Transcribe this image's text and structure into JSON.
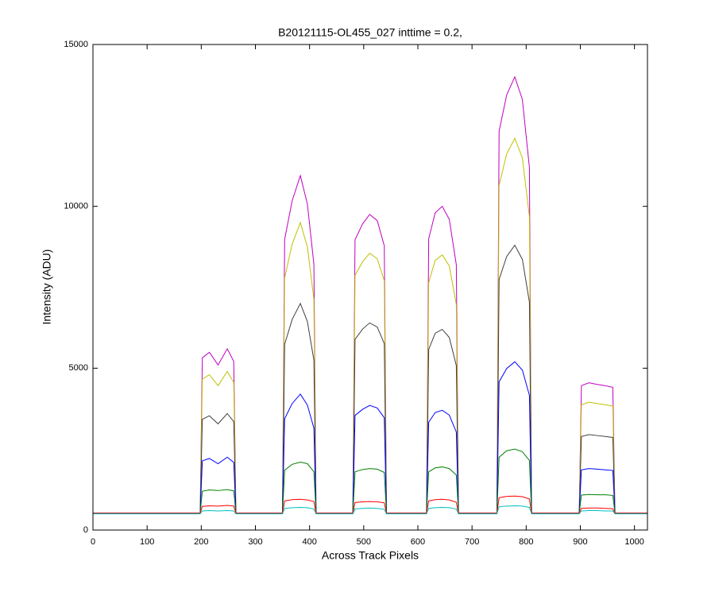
{
  "chart_data": {
    "type": "line",
    "title": "B20121115-OL455_027 inttime = 0.2,",
    "xlabel": "Across Track Pixels",
    "ylabel": "Intensity (ADU)",
    "xlim": [
      0,
      1024
    ],
    "ylim": [
      0,
      15000
    ],
    "xticks": [
      0,
      100,
      200,
      300,
      400,
      500,
      600,
      700,
      800,
      900,
      1000
    ],
    "yticks": [
      0,
      5000,
      10000,
      15000
    ],
    "grid": false,
    "x": [
      0,
      198,
      202,
      215,
      231,
      248,
      260,
      264,
      350,
      354,
      368,
      383,
      396,
      408,
      412,
      480,
      484,
      498,
      511,
      525,
      538,
      542,
      616,
      620,
      632,
      645,
      658,
      671,
      675,
      746,
      750,
      764,
      779,
      793,
      806,
      810,
      898,
      902,
      916,
      931,
      946,
      960,
      964,
      1024
    ],
    "series": [
      {
        "color": "#bf00bf",
        "values": [
          520,
          520,
          5320,
          5490,
          5100,
          5600,
          5210,
          520,
          520,
          8980,
          10180,
          10950,
          10070,
          8210,
          520,
          520,
          8970,
          9460,
          9750,
          9560,
          8780,
          520,
          520,
          9000,
          9800,
          10000,
          9600,
          8200,
          520,
          520,
          12320,
          13440,
          14000,
          13300,
          11200,
          520,
          520,
          4460,
          4550,
          4500,
          4460,
          4410,
          520,
          520
        ]
      },
      {
        "color": "#bfbf00",
        "values": [
          520,
          520,
          4660,
          4800,
          4460,
          4900,
          4560,
          520,
          520,
          7790,
          8840,
          9500,
          8740,
          7130,
          520,
          520,
          7870,
          8290,
          8550,
          8380,
          7700,
          520,
          520,
          7650,
          8330,
          8500,
          8160,
          6970,
          520,
          520,
          10650,
          11620,
          12100,
          11500,
          9680,
          520,
          520,
          3870,
          3950,
          3910,
          3870,
          3830,
          520,
          520
        ]
      },
      {
        "color": "#404040",
        "values": [
          520,
          520,
          3420,
          3530,
          3280,
          3600,
          3350,
          520,
          520,
          5740,
          6510,
          7000,
          6440,
          5250,
          520,
          520,
          5890,
          6210,
          6400,
          6270,
          5760,
          520,
          520,
          5580,
          6080,
          6200,
          5950,
          5080,
          520,
          520,
          7740,
          8450,
          8800,
          8360,
          7040,
          520,
          520,
          2890,
          2950,
          2920,
          2890,
          2860,
          520,
          520
        ]
      },
      {
        "color": "#0000ff",
        "values": [
          520,
          520,
          2140,
          2210,
          2050,
          2250,
          2090,
          520,
          520,
          3440,
          3910,
          4200,
          3860,
          3150,
          520,
          520,
          3540,
          3730,
          3850,
          3770,
          3470,
          520,
          520,
          3330,
          3630,
          3700,
          3550,
          3030,
          520,
          520,
          4580,
          4990,
          5200,
          4940,
          4160,
          520,
          520,
          1860,
          1900,
          1880,
          1860,
          1840,
          520,
          520
        ]
      },
      {
        "color": "#008000",
        "values": [
          520,
          520,
          1200,
          1240,
          1220,
          1250,
          1210,
          520,
          520,
          1850,
          2030,
          2100,
          2050,
          1800,
          520,
          520,
          1800,
          1870,
          1900,
          1880,
          1780,
          520,
          520,
          1800,
          1920,
          1950,
          1900,
          1700,
          520,
          520,
          2250,
          2450,
          2500,
          2420,
          2150,
          520,
          520,
          1080,
          1100,
          1090,
          1090,
          1070,
          520,
          520
        ]
      },
      {
        "color": "#ff0000",
        "values": [
          520,
          520,
          730,
          750,
          740,
          760,
          740,
          520,
          520,
          900,
          940,
          950,
          930,
          880,
          520,
          520,
          850,
          870,
          880,
          870,
          840,
          520,
          520,
          900,
          940,
          950,
          930,
          860,
          520,
          520,
          1000,
          1040,
          1050,
          1030,
          960,
          520,
          520,
          670,
          680,
          680,
          670,
          660,
          520,
          520
        ]
      },
      {
        "color": "#00bfbf",
        "values": [
          500,
          500,
          590,
          600,
          590,
          600,
          590,
          500,
          500,
          670,
          690,
          700,
          690,
          650,
          500,
          500,
          650,
          670,
          680,
          670,
          640,
          500,
          500,
          670,
          690,
          700,
          690,
          650,
          500,
          500,
          720,
          740,
          750,
          740,
          700,
          500,
          500,
          590,
          600,
          600,
          590,
          590,
          500,
          500
        ]
      }
    ]
  }
}
